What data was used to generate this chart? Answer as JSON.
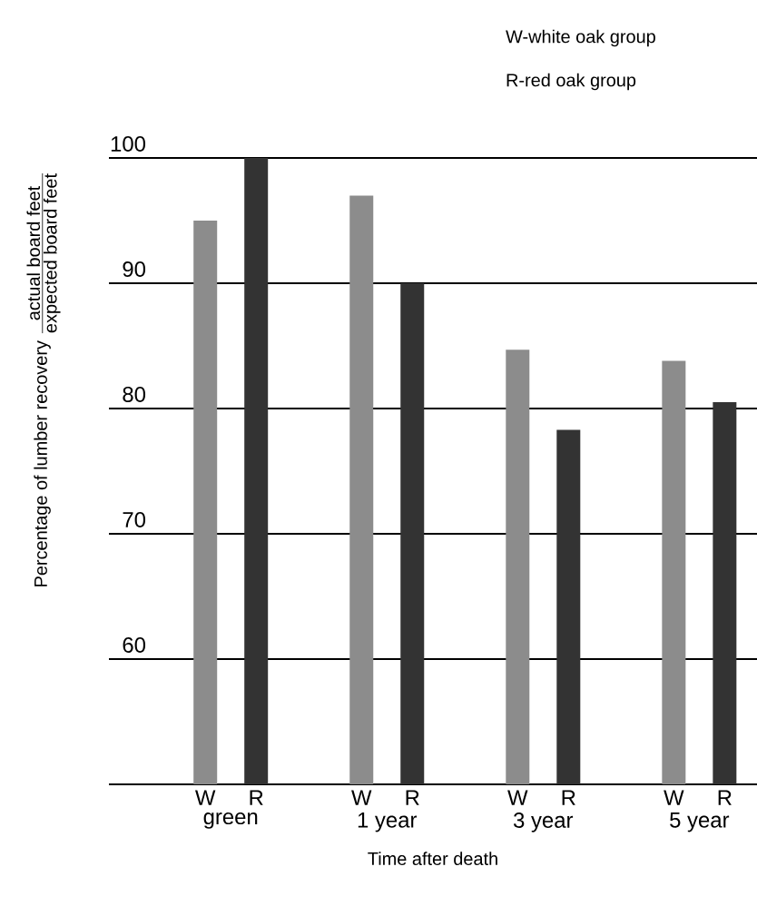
{
  "chart_data": {
    "type": "bar",
    "ylabel": "Percentage of lumber recovery",
    "xlabel": "Time after death",
    "categories": [
      "green",
      "1 year",
      "3 year",
      "5 year"
    ],
    "series": [
      {
        "name": "W",
        "color": "#8c8c8c",
        "values": [
          95,
          97,
          84.7,
          83.8
        ]
      },
      {
        "name": "R",
        "color": "#333333",
        "values": [
          100,
          90,
          78.3,
          80.5
        ]
      }
    ],
    "ylim": [
      50,
      100
    ],
    "yticks": [
      60,
      70,
      80,
      90,
      100
    ],
    "grid": "y",
    "annotations": [
      "W-white oak group",
      "R-red oak group",
      "actual board feet",
      "expected board feet"
    ]
  }
}
